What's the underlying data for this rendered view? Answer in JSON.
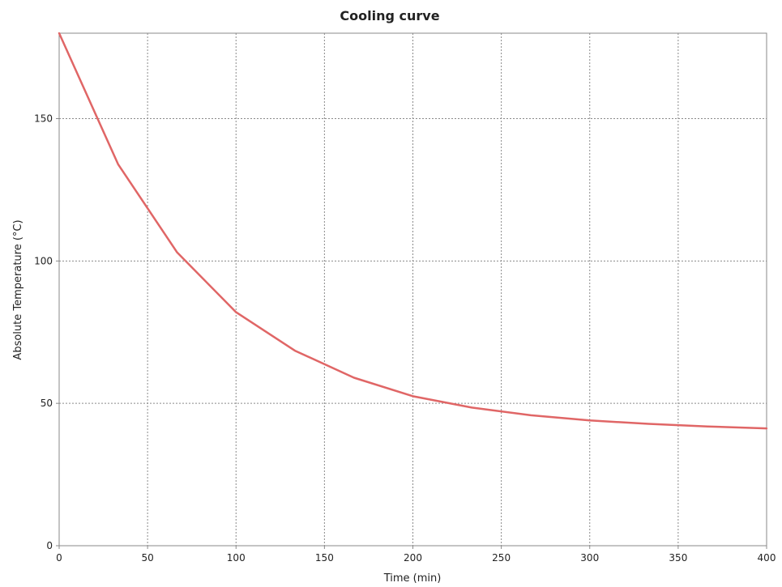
{
  "chart_data": {
    "type": "line",
    "title": "Cooling curve",
    "xlabel": "Time (min)",
    "ylabel": "Absolute Temperature (°C)",
    "xlim": [
      0,
      400
    ],
    "ylim": [
      0,
      180
    ],
    "x_ticks": [
      0,
      50,
      100,
      150,
      200,
      250,
      300,
      350,
      400
    ],
    "y_ticks": [
      0,
      50,
      100,
      150
    ],
    "grid": true,
    "legend": "none",
    "series": [
      {
        "color": "#e06666",
        "x": [
          0,
          33.3,
          66.7,
          100,
          133.3,
          166.7,
          200,
          233.3,
          266.7,
          300,
          333.3,
          366.7,
          400
        ],
        "y": [
          180,
          134,
          103,
          82,
          68.5,
          59,
          52.5,
          48.5,
          45.8,
          44,
          42.8,
          41.9,
          41.2
        ]
      }
    ]
  }
}
